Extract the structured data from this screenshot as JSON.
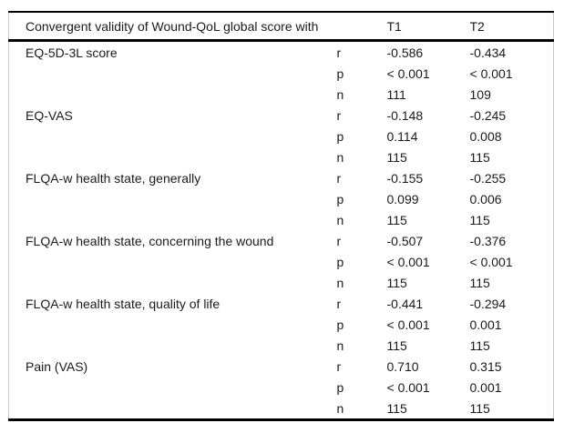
{
  "table": {
    "header": {
      "title": "Convergent validity of Wound-QoL global score with",
      "stat": "",
      "t1": "T1",
      "t2": "T2"
    },
    "measures": [
      {
        "label": "EQ-5D-3L score",
        "stats": [
          {
            "stat": "r",
            "t1": "-0.586",
            "t2": "-0.434"
          },
          {
            "stat": "p",
            "t1": "< 0.001",
            "t2": "< 0.001"
          },
          {
            "stat": "n",
            "t1": "111",
            "t2": "109"
          }
        ]
      },
      {
        "label": "EQ-VAS",
        "stats": [
          {
            "stat": "r",
            "t1": "-0.148",
            "t2": "-0.245"
          },
          {
            "stat": "p",
            "t1": "0.114",
            "t2": "0.008"
          },
          {
            "stat": "n",
            "t1": "115",
            "t2": "115"
          }
        ]
      },
      {
        "label": "FLQA-w health state, generally",
        "stats": [
          {
            "stat": "r",
            "t1": "-0.155",
            "t2": "-0.255"
          },
          {
            "stat": "p",
            "t1": "0.099",
            "t2": "0.006"
          },
          {
            "stat": "n",
            "t1": "115",
            "t2": "115"
          }
        ]
      },
      {
        "label": "FLQA-w health state, concerning the wound",
        "stats": [
          {
            "stat": "r",
            "t1": "-0.507",
            "t2": "-0.376"
          },
          {
            "stat": "p",
            "t1": "< 0.001",
            "t2": "< 0.001"
          },
          {
            "stat": "n",
            "t1": "115",
            "t2": "115"
          }
        ]
      },
      {
        "label": "FLQA-w health state, quality of life",
        "stats": [
          {
            "stat": "r",
            "t1": "-0.441",
            "t2": "-0.294"
          },
          {
            "stat": "p",
            "t1": "< 0.001",
            "t2": "0.001"
          },
          {
            "stat": "n",
            "t1": "115",
            "t2": "115"
          }
        ]
      },
      {
        "label": "Pain (VAS)",
        "stats": [
          {
            "stat": "r",
            "t1": "0.710",
            "t2": "0.315"
          },
          {
            "stat": "p",
            "t1": "< 0.001",
            "t2": "0.001"
          },
          {
            "stat": "n",
            "t1": "115",
            "t2": "115"
          }
        ]
      }
    ],
    "colors": {
      "rule": "#000000",
      "side_border": "#c9c9c9",
      "text": "#1a1a1a",
      "background": "#ffffff"
    }
  }
}
